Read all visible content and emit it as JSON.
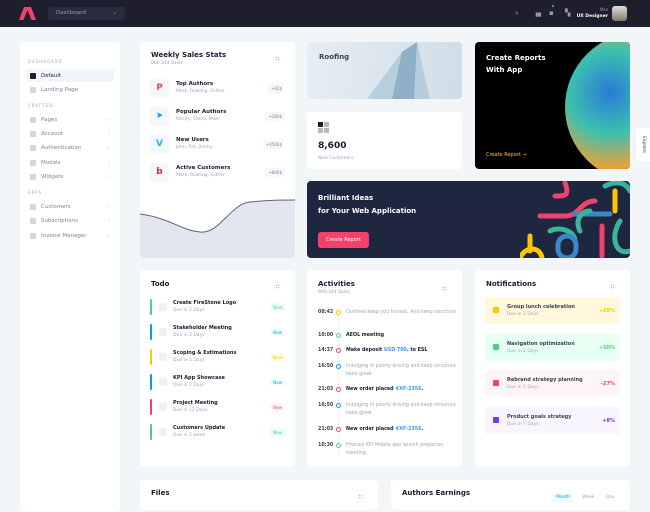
{
  "topbar": {
    "dropdown": "Dashboard",
    "user_greeting": "Max",
    "user_role": "UX Designer"
  },
  "sidebar": {
    "sections": [
      {
        "title": "DASHBOARD",
        "items": [
          {
            "label": "Default",
            "active": true
          },
          {
            "label": "Landing Page"
          }
        ]
      },
      {
        "title": "CRAFTED",
        "items": [
          {
            "label": "Pages"
          },
          {
            "label": "Account"
          },
          {
            "label": "Authentication"
          },
          {
            "label": "Modals"
          },
          {
            "label": "Widgets"
          }
        ]
      },
      {
        "title": "APPS",
        "items": [
          {
            "label": "Customers"
          },
          {
            "label": "Subscriptions"
          },
          {
            "label": "Invoice Manager"
          }
        ]
      }
    ]
  },
  "weekly": {
    "title": "Weekly Sales Stats",
    "subtitle": "890,344 Sales",
    "items": [
      {
        "title": "Top Authors",
        "sub": "Mark, Rowling, Esther",
        "badge": "+82$",
        "icon": "pinterest-icon",
        "color": "#f1416c",
        "glyph": "P"
      },
      {
        "title": "Popular Authors",
        "sub": "Randy, Steve, Mike",
        "badge": "+280$",
        "icon": "telegram-icon",
        "color": "#009ef7",
        "glyph": "➤"
      },
      {
        "title": "New Users",
        "sub": "John, Pat, Jimmy",
        "badge": "+4500$",
        "icon": "vimeo-icon",
        "color": "#1ab7ea",
        "glyph": "V"
      },
      {
        "title": "Active Customers",
        "sub": "Mark, Rowling, Esther",
        "badge": "+800$",
        "icon": "bebo-icon",
        "color": "#e4232b",
        "glyph": "b"
      }
    ]
  },
  "roofing": {
    "title": "Roofing"
  },
  "customers": {
    "value": "8,600",
    "label": "New Customers"
  },
  "reports": {
    "title1": "Create Reports",
    "title2": "With App",
    "link": "Create Report →"
  },
  "ideas": {
    "title1": "Brilliant Ideas",
    "title2": "for Your Web Application",
    "button": "Create Report"
  },
  "todo": {
    "title": "Todo",
    "items": [
      {
        "title": "Create FireStone Logo",
        "due": "Due in 2 Days",
        "badge": "New",
        "color": "#50cd89",
        "bg": "#e8fff3"
      },
      {
        "title": "Stakeholder Meeting",
        "due": "Due in 3 Days",
        "badge": "New",
        "color": "#009ef7",
        "bg": "#f1faff"
      },
      {
        "title": "Scoping & Estimations",
        "due": "Due in 5 Days",
        "badge": "New",
        "color": "#ffc700",
        "bg": "#fff8dd"
      },
      {
        "title": "KPI App Showcase",
        "due": "Due in 2 Days",
        "badge": "New",
        "color": "#009ef7",
        "bg": "#f1faff"
      },
      {
        "title": "Project Meeting",
        "due": "Due in 12 Days",
        "badge": "New",
        "color": "#f1416c",
        "bg": "#fff5f8"
      },
      {
        "title": "Customers Update",
        "due": "Due in 1 week",
        "badge": "New",
        "color": "#50cd89",
        "bg": "#e8fff3"
      }
    ]
  },
  "activities": {
    "title": "Activities",
    "subtitle": "890,344 Sales",
    "items": [
      {
        "time": "08:42",
        "text": "Outlines keep you honest. And keep structure",
        "style": "m",
        "color": "#ffc700"
      },
      {
        "time": "10:00",
        "text": "AEOL meeting",
        "style": "b",
        "color": "#50cd89"
      },
      {
        "time": "14:37",
        "pre": "Make deposit ",
        "link": "USD 700",
        "post": ". to ESL",
        "style": "b",
        "color": "#f1416c"
      },
      {
        "time": "16:50",
        "text": "Indulging in poorly driving and keep structure keep great",
        "style": "m",
        "color": "#009ef7"
      },
      {
        "time": "21:03",
        "pre": "New order placed ",
        "link": "#XF-2356",
        "post": ".",
        "style": "b",
        "color": "#f1416c"
      },
      {
        "time": "16:50",
        "text": "Indulging in poorly driving and keep structure keep great",
        "style": "m",
        "color": "#009ef7"
      },
      {
        "time": "21:03",
        "pre": "New order placed ",
        "link": "#XF-2356",
        "post": ".",
        "style": "b",
        "color": "#f1416c"
      },
      {
        "time": "10:30",
        "text": "Finance KPI Mobile app launch preparion meeting",
        "style": "m",
        "color": "#50cd89"
      }
    ]
  },
  "notifications": {
    "title": "Notifications",
    "items": [
      {
        "title": "Group lunch celebration",
        "due": "Due in 2 Days",
        "value": "+28%",
        "color": "#ffc700",
        "bg": "#fff8dd"
      },
      {
        "title": "Navigation optimization",
        "due": "Due in 2 Days",
        "value": "+50%",
        "color": "#50cd89",
        "bg": "#e8fff3"
      },
      {
        "title": "Rebrand strategy planning",
        "due": "Due in 5 Days",
        "value": "-27%",
        "color": "#f1416c",
        "bg": "#fff5f8"
      },
      {
        "title": "Product goals strategy",
        "due": "Due in 7 Days",
        "value": "+8%",
        "color": "#7239ea",
        "bg": "#f8f5ff"
      }
    ]
  },
  "files": {
    "title": "Files"
  },
  "earnings": {
    "title": "Authors Earnings",
    "tabs": [
      "Month",
      "Week",
      "Day"
    ]
  },
  "explore": "Explore"
}
